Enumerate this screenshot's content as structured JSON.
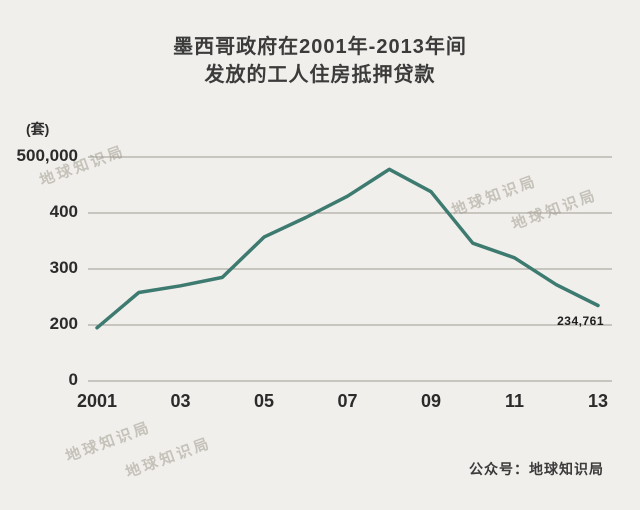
{
  "title": {
    "line1": "墨西哥政府在2001年-2013年间",
    "line2": "发放的工人住房抵押贷款"
  },
  "unit_label": "(套)",
  "watermark_text": "地球知识局",
  "footer": "公众号：地球知识局",
  "colors": {
    "background": "#f1efeb",
    "line": "#3d7a6f",
    "grid": "#9e9890",
    "text": "#2b2b2b"
  },
  "chart_data": {
    "type": "line",
    "title": "墨西哥政府在2001年-2013年间发放的工人住房抵押贷款",
    "unit": "套",
    "x": [
      2001,
      2002,
      2003,
      2004,
      2005,
      2006,
      2007,
      2008,
      2009,
      2010,
      2011,
      2012,
      2013
    ],
    "values": [
      190000,
      258000,
      270000,
      285000,
      357000,
      392000,
      430000,
      478000,
      438000,
      346000,
      320000,
      272000,
      234761
    ],
    "xticks": [
      "2001",
      "03",
      "05",
      "07",
      "09",
      "11",
      "13"
    ],
    "yticks": [
      {
        "label": "0",
        "value": 0
      },
      {
        "label": "200",
        "value": 200000
      },
      {
        "label": "300",
        "value": 300000
      },
      {
        "label": "400",
        "value": 400000
      },
      {
        "label": "500,000",
        "value": 500000
      }
    ],
    "ylim": [
      0,
      500000
    ],
    "grid": true,
    "legend": "none",
    "axis_note": "y-axis compressed between 0 and 200,000",
    "annotation": {
      "x": 2013,
      "value": 234761,
      "label": "234,761"
    }
  }
}
